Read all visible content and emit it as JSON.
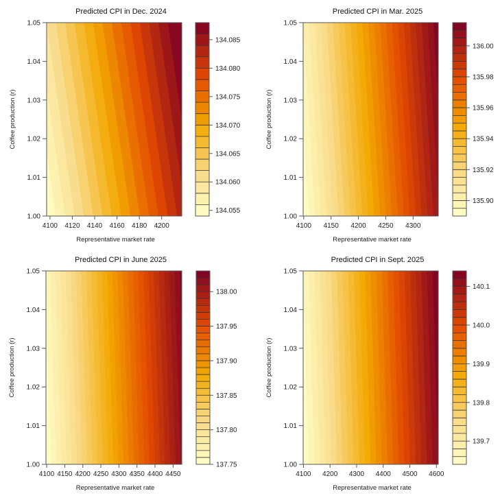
{
  "chart_data": [
    {
      "type": "heatmap",
      "subtype": "filled-contour",
      "title": "Predicted CPI in Dec. 2024",
      "xlabel": "Representative market rate",
      "ylabel": "Coffee production (r)",
      "xlim": [
        4097,
        4218
      ],
      "ylim": [
        1.0,
        1.05
      ],
      "xticks": [
        "4100",
        "4120",
        "4140",
        "4160",
        "4180",
        "4200"
      ],
      "yticks": [
        "1.00",
        "1.01",
        "1.02",
        "1.03",
        "1.04",
        "1.05"
      ],
      "zlim": [
        134.054,
        134.088
      ],
      "level_step": 0.002,
      "legend_ticks": [
        "134.055",
        "134.060",
        "134.065",
        "134.070",
        "134.075",
        "134.080",
        "134.085"
      ],
      "z_corners": {
        "bottom_left": 134.054,
        "bottom_right": 134.083,
        "top_left": 134.06,
        "top_right": 134.088
      }
    },
    {
      "type": "heatmap",
      "subtype": "filled-contour",
      "title": "Predicted CPI in Mar. 2025",
      "xlabel": "Representative market rate",
      "ylabel": "Coffee production (r)",
      "xlim": [
        4099,
        4346
      ],
      "ylim": [
        1.0,
        1.05
      ],
      "xticks": [
        "4100",
        "4150",
        "4200",
        "4250",
        "4300"
      ],
      "yticks": [
        "1.00",
        "1.01",
        "1.02",
        "1.03",
        "1.04",
        "1.05"
      ],
      "zlim": [
        135.89,
        136.015
      ],
      "level_step": 0.005,
      "legend_ticks": [
        "135.90",
        "135.92",
        "135.94",
        "135.96",
        "135.98",
        "136.00"
      ],
      "z_corners": {
        "bottom_left": 135.89,
        "bottom_right": 136.004,
        "top_left": 135.9,
        "top_right": 136.015
      }
    },
    {
      "type": "heatmap",
      "subtype": "filled-contour",
      "title": "Predicted CPI in June 2025",
      "xlabel": "Representative market rate",
      "ylabel": "Coffee production (r)",
      "xlim": [
        4098,
        4474
      ],
      "ylim": [
        1.0,
        1.05
      ],
      "xticks": [
        "4100",
        "4150",
        "4200",
        "4250",
        "4300",
        "4350",
        "4400",
        "4450"
      ],
      "yticks": [
        "1.00",
        "1.01",
        "1.02",
        "1.03",
        "1.04",
        "1.05"
      ],
      "zlim": [
        137.75,
        138.03
      ],
      "level_step": 0.01,
      "legend_ticks": [
        "137.75",
        "137.80",
        "137.85",
        "137.90",
        "137.95",
        "138.00"
      ],
      "z_corners": {
        "bottom_left": 137.75,
        "bottom_right": 138.012,
        "top_left": 137.762,
        "top_right": 138.03
      }
    },
    {
      "type": "heatmap",
      "subtype": "filled-contour",
      "title": "Predicted CPI in Sept. 2025",
      "xlabel": "Representative market rate",
      "ylabel": "Coffee production (r)",
      "xlim": [
        4099,
        4607
      ],
      "ylim": [
        1.0,
        1.05
      ],
      "xticks": [
        "4100",
        "4200",
        "4300",
        "4400",
        "4500",
        "4600"
      ],
      "yticks": [
        "1.00",
        "1.01",
        "1.02",
        "1.03",
        "1.04",
        "1.05"
      ],
      "zlim": [
        139.64,
        140.14
      ],
      "level_step": 0.02,
      "legend_ticks": [
        "139.7",
        "139.8",
        "139.9",
        "140.0",
        "140.1"
      ],
      "z_corners": {
        "bottom_left": 139.64,
        "bottom_right": 140.12,
        "top_left": 139.66,
        "top_right": 140.14
      }
    }
  ],
  "colors": {
    "palette": [
      "#FFFFC8",
      "#F9DB8A",
      "#F3A700",
      "#E24A00",
      "#7D0025"
    ],
    "axis": "#555555"
  }
}
